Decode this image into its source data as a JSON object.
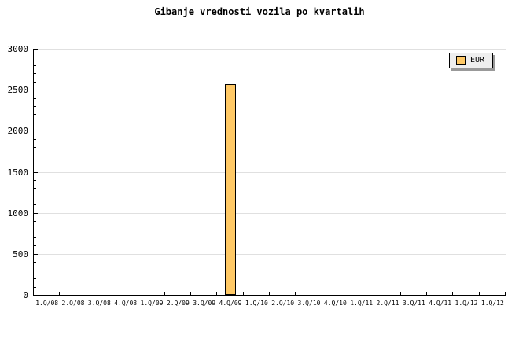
{
  "title": "Gibanje vrednosti vozila po kvartalih",
  "colors": {
    "background": "#FFFFFF",
    "axis": "#000000",
    "grid": "#E0E0E0",
    "bar_fill": "#FFC966",
    "bar_border": "#000000",
    "legend_background": "#EEEEEE",
    "legend_shadow": "#999999"
  },
  "legend": {
    "label": "EUR",
    "position": "top-right"
  },
  "chart_data": {
    "type": "bar",
    "title": "Gibanje vrednosti vozila po kvartalih",
    "xlabel": "",
    "ylabel": "",
    "categories": [
      "1.Q/08",
      "2.Q/08",
      "3.Q/08",
      "4.Q/08",
      "1.Q/09",
      "2.Q/09",
      "3.Q/09",
      "4.Q/09",
      "1.Q/10",
      "2.Q/10",
      "3.Q/10",
      "4.Q/10",
      "1.Q/11",
      "2.Q/11",
      "3.Q/11",
      "4.Q/11",
      "1.Q/12",
      "1.Q/12"
    ],
    "series": [
      {
        "name": "EUR",
        "color": "#FFC966",
        "values": [
          0,
          0,
          0,
          0,
          0,
          0,
          0,
          2570,
          0,
          0,
          0,
          0,
          0,
          0,
          0,
          0,
          0,
          0
        ]
      }
    ],
    "ylim": [
      0,
      3000
    ],
    "ytick_step": 500,
    "yminor_step": 100,
    "ytick_labels": [
      "0",
      "500",
      "1000",
      "1500",
      "2000",
      "2500",
      "3000"
    ],
    "grid": true,
    "legend_position": "top-right"
  }
}
